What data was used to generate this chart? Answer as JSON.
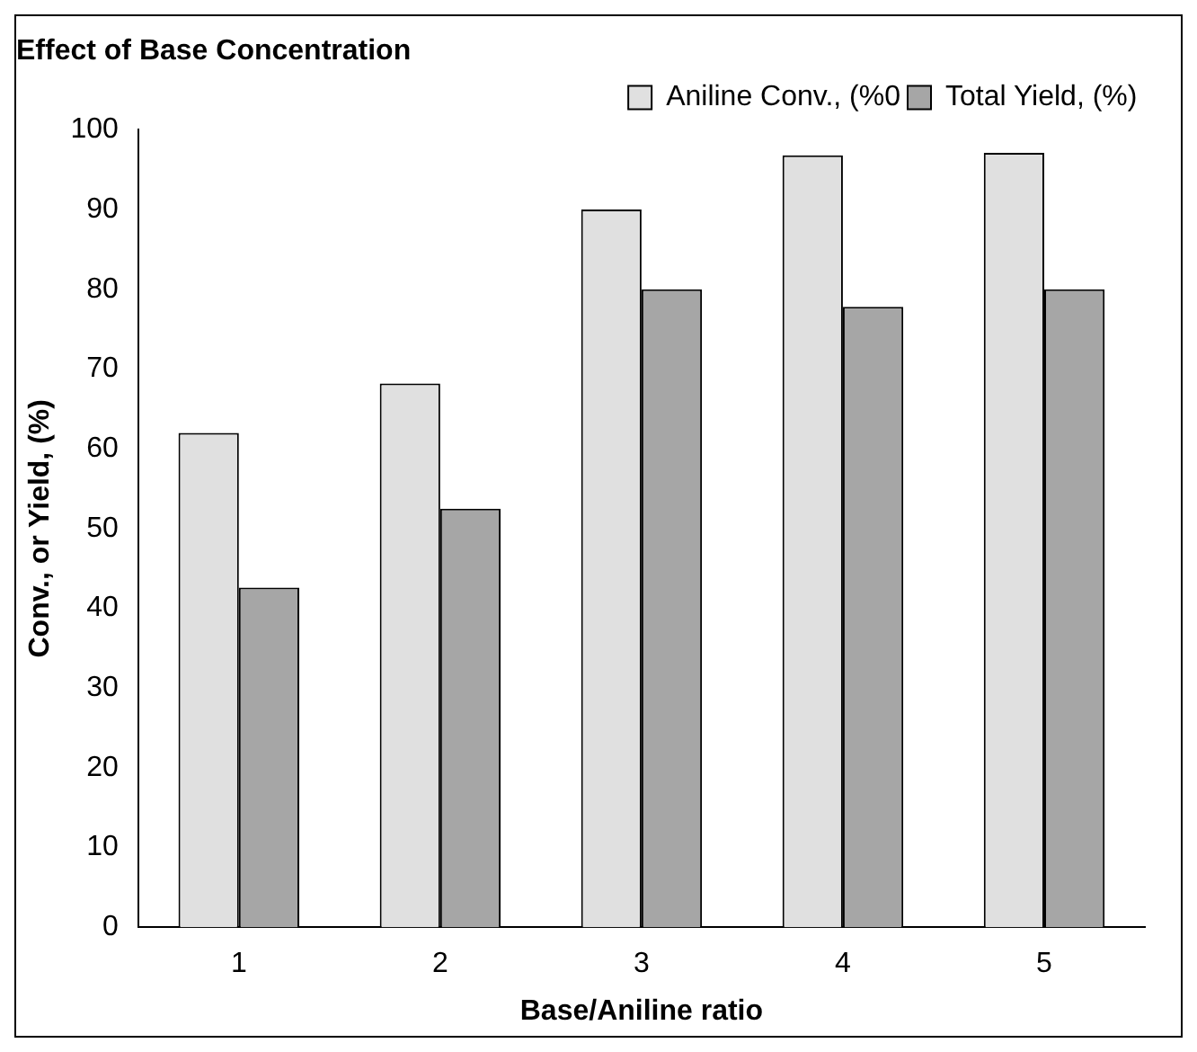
{
  "chart_data": {
    "type": "bar",
    "title": "Effect of Base Concentration",
    "xlabel": "Base/Aniline ratio",
    "ylabel": "Conv., or Yield, (%)",
    "categories": [
      "1",
      "2",
      "3",
      "4",
      "5"
    ],
    "series": [
      {
        "name": "Aniline Conv., (%0",
        "color": "#e0e0e0",
        "values": [
          62,
          68.2,
          90,
          96.8,
          97.1
        ]
      },
      {
        "name": "Total Yield, (%)",
        "color": "#a6a6a6",
        "values": [
          42.6,
          52.5,
          80,
          77.8,
          80
        ]
      }
    ],
    "ylim": [
      0,
      100
    ],
    "yticks": [
      0,
      10,
      20,
      30,
      40,
      50,
      60,
      70,
      80,
      90,
      100
    ],
    "grid": false,
    "legend": "top right"
  }
}
